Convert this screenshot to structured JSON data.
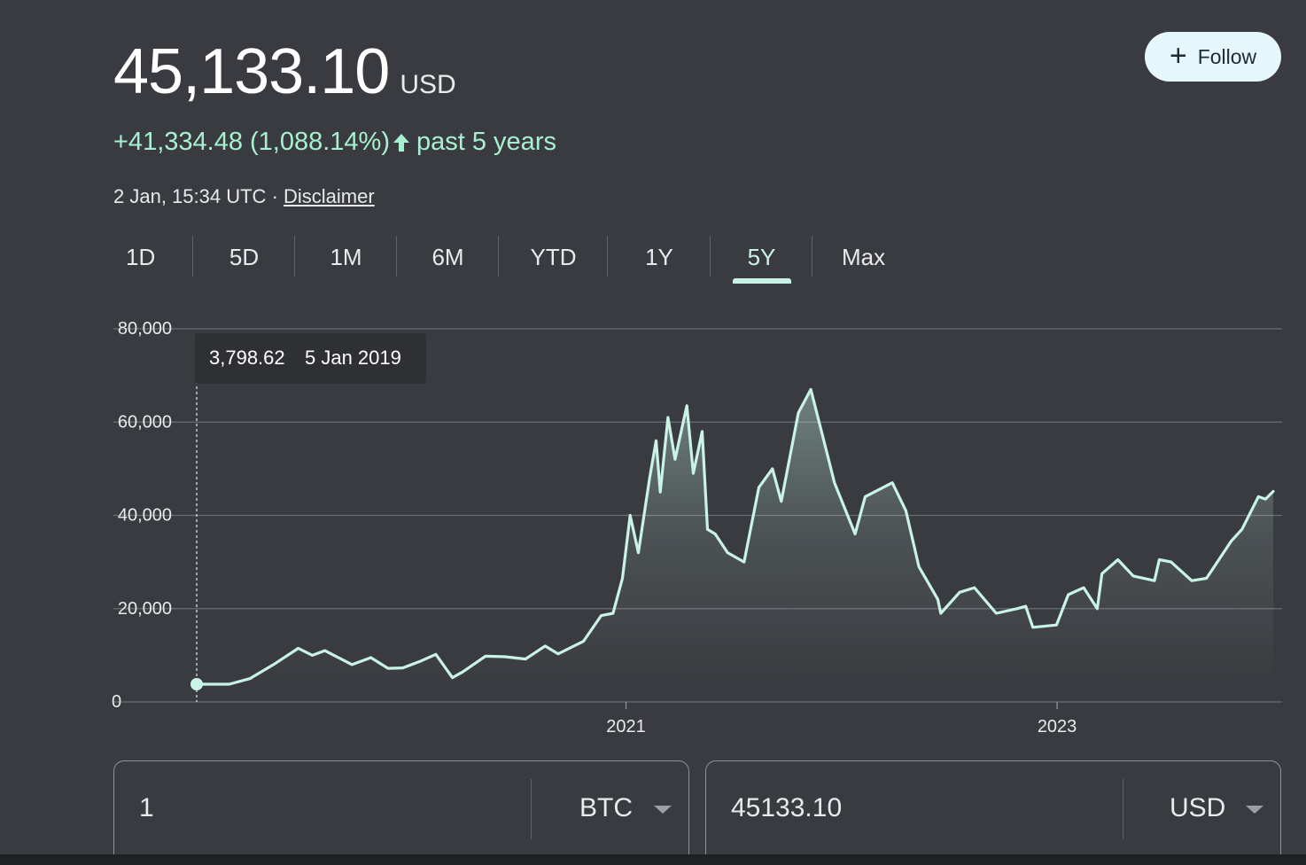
{
  "quote": {
    "price": "45,133.10",
    "currency": "USD",
    "change": "+41,334.48 (1,088.14%)",
    "period": "past 5 years",
    "timestamp": "2 Jan, 15:34 UTC",
    "separator": "·",
    "disclaimer": "Disclaimer",
    "follow_label": "Follow"
  },
  "tabs": [
    "1D",
    "5D",
    "1M",
    "6M",
    "YTD",
    "1Y",
    "5Y",
    "Max"
  ],
  "active_tab": "5Y",
  "tooltip": {
    "value": "3,798.62",
    "date": "5 Jan 2019"
  },
  "converter": {
    "from_value": "1",
    "from_unit": "BTC",
    "to_value": "45133.10",
    "to_unit": "USD"
  },
  "colors": {
    "line": "#c8f3e5",
    "change_positive": "#a8f0cf",
    "background": "#3a3b40"
  },
  "chart_data": {
    "type": "area",
    "ylim": [
      0,
      80000
    ],
    "yticks": [
      0,
      20000,
      40000,
      60000,
      80000
    ],
    "ytick_labels": [
      "0",
      "20,000",
      "40,000",
      "60,000",
      "80,000"
    ],
    "xticks": [
      "2021-01-01",
      "2023-01-01"
    ],
    "xtick_labels": [
      "2021",
      "2023"
    ],
    "xlim": [
      "2019-01-05",
      "2024-01-02"
    ],
    "series": [
      {
        "x": [
          "2019-01-05",
          "2019-03-01",
          "2019-04-05",
          "2019-05-15",
          "2019-06-26",
          "2019-07-20",
          "2019-08-10",
          "2019-09-25",
          "2019-10-27",
          "2019-11-25",
          "2019-12-20",
          "2020-01-20",
          "2020-02-14",
          "2020-03-13",
          "2020-03-30",
          "2020-05-08",
          "2020-06-10",
          "2020-07-15",
          "2020-08-17",
          "2020-09-08",
          "2020-10-21",
          "2020-11-20",
          "2020-12-10",
          "2020-12-26",
          "2021-01-08",
          "2021-01-22",
          "2021-02-10",
          "2021-02-21",
          "2021-02-28",
          "2021-03-13",
          "2021-03-25",
          "2021-04-14",
          "2021-04-25",
          "2021-05-10",
          "2021-05-19",
          "2021-06-01",
          "2021-06-22",
          "2021-07-20",
          "2021-08-14",
          "2021-09-06",
          "2021-09-21",
          "2021-10-20",
          "2021-11-10",
          "2021-11-30",
          "2021-12-20",
          "2022-01-24",
          "2022-02-10",
          "2022-03-28",
          "2022-04-20",
          "2022-05-12",
          "2022-06-13",
          "2022-06-18",
          "2022-07-20",
          "2022-08-14",
          "2022-09-20",
          "2022-10-25",
          "2022-11-09",
          "2022-11-21",
          "2022-12-31",
          "2023-01-20",
          "2023-02-15",
          "2023-03-10",
          "2023-03-18",
          "2023-04-14",
          "2023-05-10",
          "2023-06-15",
          "2023-06-23",
          "2023-07-13",
          "2023-08-17",
          "2023-09-11",
          "2023-10-23",
          "2023-11-10",
          "2023-12-08",
          "2023-12-20",
          "2024-01-02"
        ],
        "y": [
          3798.62,
          3800,
          5000,
          8000,
          11500,
          10000,
          11000,
          8000,
          9500,
          7200,
          7300,
          8800,
          10200,
          5200,
          6400,
          9800,
          9700,
          9200,
          12000,
          10300,
          13000,
          18500,
          19000,
          26500,
          40000,
          32000,
          48000,
          56000,
          45000,
          61000,
          52000,
          63500,
          49000,
          58000,
          37000,
          36000,
          32000,
          30000,
          46000,
          50000,
          43000,
          62000,
          67000,
          57000,
          47000,
          36000,
          44000,
          47000,
          41000,
          29000,
          22000,
          19000,
          23500,
          24500,
          19000,
          20000,
          20500,
          16000,
          16500,
          23000,
          24500,
          20000,
          27500,
          30500,
          27000,
          26000,
          30500,
          30000,
          26000,
          26500,
          34500,
          37000,
          44000,
          43500,
          45133.1
        ]
      }
    ]
  }
}
